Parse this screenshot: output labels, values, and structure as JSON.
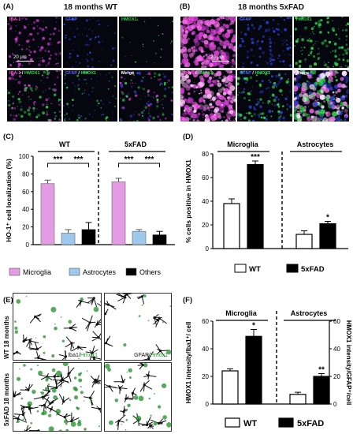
{
  "panel_A": {
    "letter": "(A)",
    "title": "18 months WT",
    "tiles_top": [
      "IBA-1",
      "GFAP",
      "HMOX1"
    ],
    "tiles_bottom": [
      {
        "a": "IBA-1",
        "sep": " / ",
        "b": "HMOX1"
      },
      {
        "a": "GFAP",
        "sep": " / ",
        "b": "HMOX1"
      },
      {
        "a": "Merge",
        "sep": "",
        "b": ""
      }
    ],
    "scale_bar": "20 µm"
  },
  "panel_B": {
    "letter": "(B)",
    "title": "18 months 5xFAD",
    "tiles_top": [
      "IBA-1",
      "GFAP",
      "HMOX1"
    ],
    "tiles_bottom": [
      {
        "a": "IBA-1",
        "sep": " / ",
        "b": "HMOX1"
      },
      {
        "a": "GFAP",
        "sep": " / ",
        "b": "HMOX1"
      },
      {
        "a": "Merge",
        "sep": "",
        "b": ""
      }
    ],
    "scale_bar": "20 µm"
  },
  "panel_C": {
    "letter": "(C)"
  },
  "panel_D": {
    "letter": "(D)"
  },
  "panel_E": {
    "letter": "(E)",
    "row_labels": [
      "WT 18 months",
      "5xFAD 18 months"
    ],
    "stain_left": {
      "a": "Iba1",
      "sep": "/",
      "b": "Hmox1"
    },
    "stain_right": {
      "a": "GFAP",
      "sep": "/",
      "b": "Hmox1"
    }
  },
  "panel_F": {
    "letter": "(F)"
  },
  "colors": {
    "microglia": "#e39be3",
    "astrocytes": "#9ec8ec",
    "others": "#000000",
    "wt": "#ffffff",
    "fad": "#000000",
    "iba1_label": "#ff4fd8",
    "gfap_label": "#4d6bff",
    "hmox1_label": "#2fd84a",
    "hmox1_dark_label": "#1a9a2a"
  },
  "chart_data": [
    {
      "id": "C",
      "type": "bar",
      "groups": [
        "WT",
        "5xFAD"
      ],
      "categories": [
        "Microglia",
        "Astrocytes",
        "Others"
      ],
      "series": [
        {
          "group": "WT",
          "values": [
            69,
            13,
            17
          ],
          "errors": [
            4,
            4,
            8
          ]
        },
        {
          "group": "5xFAD",
          "values": [
            71,
            15,
            11
          ],
          "errors": [
            4,
            2,
            4
          ]
        }
      ],
      "ylabel": "HO-1⁺ cell localization (%)",
      "ylim": [
        0,
        100
      ],
      "yticks": [
        "0",
        "20",
        "40",
        "60",
        "80",
        "100"
      ],
      "significance": "***",
      "legend": [
        "Microglia",
        "Astrocytes",
        "Others"
      ]
    },
    {
      "id": "D",
      "type": "bar",
      "groups": [
        "Microglia",
        "Astrocytes"
      ],
      "categories": [
        "WT",
        "5xFAD"
      ],
      "series": [
        {
          "group": "Microglia",
          "values": [
            38,
            71
          ],
          "errors": [
            4,
            3
          ],
          "marks": [
            "",
            "***"
          ]
        },
        {
          "group": "Astrocytes",
          "values": [
            12,
            21
          ],
          "errors": [
            3,
            2
          ],
          "marks": [
            "",
            "*"
          ]
        }
      ],
      "ylabel": "% cells positive in HMOX1",
      "ylim": [
        0,
        80
      ],
      "yticks": [
        "0",
        "20",
        "40",
        "60",
        "80"
      ],
      "legend": [
        "WT",
        "5xFAD"
      ]
    },
    {
      "id": "F",
      "type": "bar",
      "groups": [
        "Microglia",
        "Astrocytes"
      ],
      "categories": [
        "WT",
        "5xFAD"
      ],
      "series": [
        {
          "group": "Microglia",
          "values": [
            24,
            49
          ],
          "errors": [
            1.5,
            5
          ],
          "marks": [
            "",
            "*"
          ]
        },
        {
          "group": "Astrocytes",
          "values": [
            7,
            20
          ],
          "errors": [
            1.5,
            2
          ],
          "marks": [
            "",
            "**"
          ]
        }
      ],
      "ylabel_left": "HMOX1 intensity/Iba1⁺/ cell",
      "ylabel_right": "HMOX1 intensity/GFAP⁺/cell",
      "ylim": [
        0,
        60
      ],
      "yticks": [
        "0",
        "20",
        "40",
        "60"
      ],
      "legend": [
        "WT",
        "5xFAD"
      ]
    }
  ]
}
